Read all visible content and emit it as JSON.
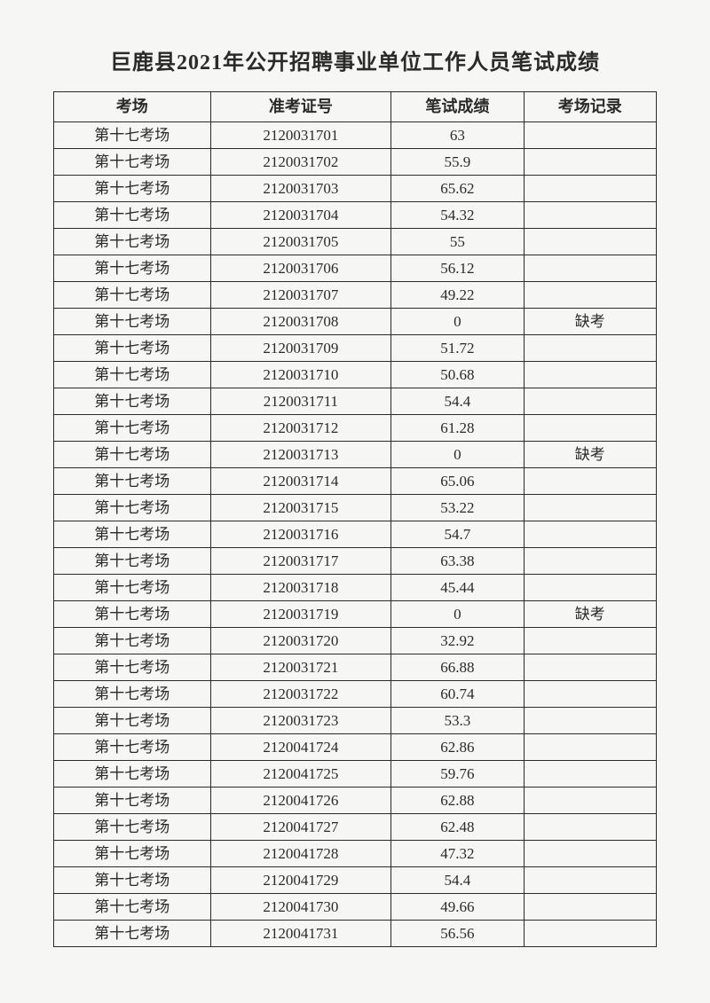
{
  "title": "巨鹿县2021年公开招聘事业单位工作人员笔试成绩",
  "table": {
    "columns": [
      "考场",
      "准考证号",
      "笔试成绩",
      "考场记录"
    ],
    "rows": [
      [
        "第十七考场",
        "2120031701",
        "63",
        ""
      ],
      [
        "第十七考场",
        "2120031702",
        "55.9",
        ""
      ],
      [
        "第十七考场",
        "2120031703",
        "65.62",
        ""
      ],
      [
        "第十七考场",
        "2120031704",
        "54.32",
        ""
      ],
      [
        "第十七考场",
        "2120031705",
        "55",
        ""
      ],
      [
        "第十七考场",
        "2120031706",
        "56.12",
        ""
      ],
      [
        "第十七考场",
        "2120031707",
        "49.22",
        ""
      ],
      [
        "第十七考场",
        "2120031708",
        "0",
        "缺考"
      ],
      [
        "第十七考场",
        "2120031709",
        "51.72",
        ""
      ],
      [
        "第十七考场",
        "2120031710",
        "50.68",
        ""
      ],
      [
        "第十七考场",
        "2120031711",
        "54.4",
        ""
      ],
      [
        "第十七考场",
        "2120031712",
        "61.28",
        ""
      ],
      [
        "第十七考场",
        "2120031713",
        "0",
        "缺考"
      ],
      [
        "第十七考场",
        "2120031714",
        "65.06",
        ""
      ],
      [
        "第十七考场",
        "2120031715",
        "53.22",
        ""
      ],
      [
        "第十七考场",
        "2120031716",
        "54.7",
        ""
      ],
      [
        "第十七考场",
        "2120031717",
        "63.38",
        ""
      ],
      [
        "第十七考场",
        "2120031718",
        "45.44",
        ""
      ],
      [
        "第十七考场",
        "2120031719",
        "0",
        "缺考"
      ],
      [
        "第十七考场",
        "2120031720",
        "32.92",
        ""
      ],
      [
        "第十七考场",
        "2120031721",
        "66.88",
        ""
      ],
      [
        "第十七考场",
        "2120031722",
        "60.74",
        ""
      ],
      [
        "第十七考场",
        "2120031723",
        "53.3",
        ""
      ],
      [
        "第十七考场",
        "2120041724",
        "62.86",
        ""
      ],
      [
        "第十七考场",
        "2120041725",
        "59.76",
        ""
      ],
      [
        "第十七考场",
        "2120041726",
        "62.88",
        ""
      ],
      [
        "第十七考场",
        "2120041727",
        "62.48",
        ""
      ],
      [
        "第十七考场",
        "2120041728",
        "47.32",
        ""
      ],
      [
        "第十七考场",
        "2120041729",
        "54.4",
        ""
      ],
      [
        "第十七考场",
        "2120041730",
        "49.66",
        ""
      ],
      [
        "第十七考场",
        "2120041731",
        "56.56",
        ""
      ]
    ]
  }
}
